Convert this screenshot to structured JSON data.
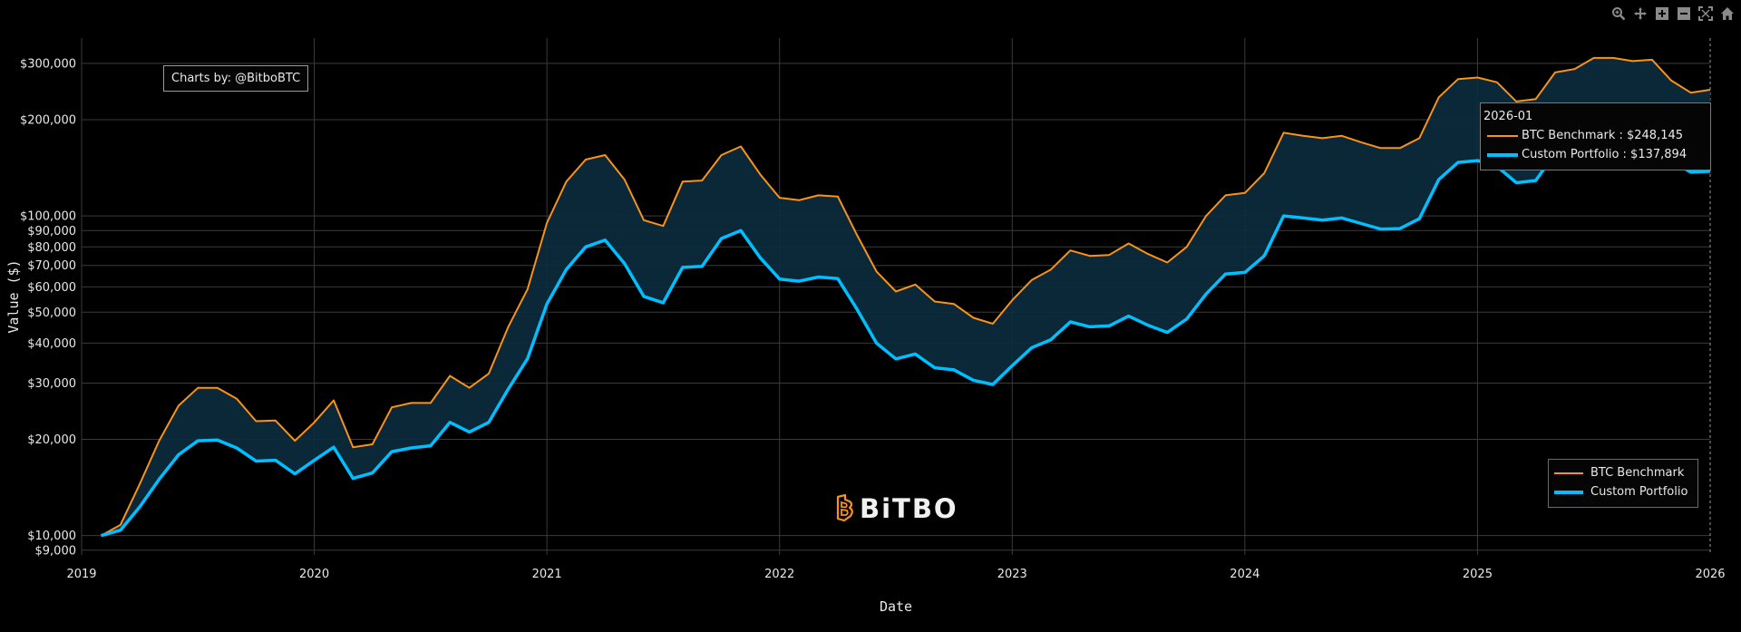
{
  "toolbar": {
    "icons": [
      "zoom-icon",
      "pan-icon",
      "zoom-in-icon",
      "zoom-out-icon",
      "autoscale-icon",
      "home-icon"
    ]
  },
  "credit": "Charts by: @BitboBTC",
  "logo": {
    "text": "BiTBO",
    "color": "#f7931a"
  },
  "tooltip": {
    "title": "2026-01",
    "rows": [
      {
        "label": "BTC Benchmark : $248,145",
        "color": "#f7931a"
      },
      {
        "label": "Custom Portfolio : $137,894",
        "color": "#00bfff"
      }
    ]
  },
  "legend": [
    {
      "label": "BTC Benchmark",
      "color": "#f7931a"
    },
    {
      "label": "Custom Portfolio",
      "color": "#00bfff"
    }
  ],
  "chart_data": {
    "type": "line",
    "title": "",
    "xlabel": "Date",
    "ylabel": "Value ($)",
    "yscale": "log",
    "ylim": [
      8700,
      360000
    ],
    "xlim": [
      "2019-01",
      "2026-01"
    ],
    "x_ticks": [
      "2019",
      "2020",
      "2021",
      "2022",
      "2023",
      "2024",
      "2025",
      "2026"
    ],
    "y_ticks": [
      {
        "value": 9000,
        "label": "$9,000"
      },
      {
        "value": 10000,
        "label": "$10,000"
      },
      {
        "value": 20000,
        "label": "$20,000"
      },
      {
        "value": 30000,
        "label": "$30,000"
      },
      {
        "value": 40000,
        "label": "$40,000"
      },
      {
        "value": 50000,
        "label": "$50,000"
      },
      {
        "value": 60000,
        "label": "$60,000"
      },
      {
        "value": 70000,
        "label": "$70,000"
      },
      {
        "value": 80000,
        "label": "$80,000"
      },
      {
        "value": 90000,
        "label": "$90,000"
      },
      {
        "value": 100000,
        "label": "$100,000"
      },
      {
        "value": 200000,
        "label": "$200,000"
      },
      {
        "value": 300000,
        "label": "$300,000"
      }
    ],
    "grid": true,
    "fill_between": true,
    "legend_position": "bottom-right",
    "x": [
      "2019-02",
      "2019-03",
      "2019-04",
      "2019-05",
      "2019-06",
      "2019-07",
      "2019-08",
      "2019-09",
      "2019-10",
      "2019-11",
      "2019-12",
      "2020-01",
      "2020-02",
      "2020-03",
      "2020-04",
      "2020-05",
      "2020-06",
      "2020-07",
      "2020-08",
      "2020-09",
      "2020-10",
      "2020-11",
      "2020-12",
      "2021-01",
      "2021-02",
      "2021-03",
      "2021-04",
      "2021-05",
      "2021-06",
      "2021-07",
      "2021-08",
      "2021-09",
      "2021-10",
      "2021-11",
      "2021-12",
      "2022-01",
      "2022-02",
      "2022-03",
      "2022-04",
      "2022-05",
      "2022-06",
      "2022-07",
      "2022-08",
      "2022-09",
      "2022-10",
      "2022-11",
      "2022-12",
      "2023-01",
      "2023-02",
      "2023-03",
      "2023-04",
      "2023-05",
      "2023-06",
      "2023-07",
      "2023-08",
      "2023-09",
      "2023-10",
      "2023-11",
      "2023-12",
      "2024-01",
      "2024-02",
      "2024-03",
      "2024-04",
      "2024-05",
      "2024-06",
      "2024-07",
      "2024-08",
      "2024-09",
      "2024-10",
      "2024-11",
      "2024-12",
      "2025-01",
      "2025-02",
      "2025-03",
      "2025-04",
      "2025-05",
      "2025-06",
      "2025-07",
      "2025-08",
      "2025-09",
      "2025-10",
      "2025-11",
      "2025-12",
      "2026-01"
    ],
    "series": [
      {
        "name": "BTC Benchmark",
        "color": "#f7931a",
        "values": [
          10000,
          10800,
          14500,
          19800,
          25500,
          29000,
          29000,
          26800,
          22800,
          22900,
          19800,
          22600,
          26500,
          18900,
          19300,
          25200,
          26000,
          26000,
          31600,
          29000,
          32100,
          44900,
          59000,
          95000,
          128000,
          150000,
          155000,
          130000,
          97000,
          93000,
          128000,
          129000,
          155000,
          165000,
          135000,
          114000,
          112000,
          116000,
          115000,
          87000,
          67000,
          58000,
          61000,
          54000,
          53000,
          48000,
          46000,
          54500,
          63000,
          68000,
          78000,
          75000,
          75500,
          82000,
          76000,
          71500,
          80000,
          100000,
          116000,
          118000,
          136000,
          182000,
          178000,
          175000,
          178000,
          170000,
          163000,
          163000,
          175000,
          235000,
          268000,
          271000,
          262000,
          228000,
          232000,
          281000,
          288000,
          312000,
          312000,
          305000,
          308000,
          265000,
          243000,
          248145
        ]
      },
      {
        "name": "Custom Portfolio",
        "color": "#00bfff",
        "values": [
          10000,
          10400,
          12300,
          15000,
          17900,
          19800,
          19900,
          18800,
          17100,
          17200,
          15600,
          17200,
          18900,
          15100,
          15700,
          18300,
          18800,
          19100,
          22600,
          21100,
          22600,
          28700,
          35800,
          53000,
          68000,
          80000,
          84000,
          71000,
          56000,
          53500,
          69000,
          69500,
          85000,
          90000,
          74000,
          63500,
          62500,
          64400,
          63700,
          51000,
          40000,
          35700,
          37000,
          33500,
          33000,
          30600,
          29700,
          34000,
          38700,
          41000,
          46600,
          45000,
          45300,
          48600,
          45500,
          43200,
          47600,
          57000,
          65800,
          66600,
          75000,
          100000,
          98500,
          97000,
          98500,
          94700,
          91000,
          91300,
          98000,
          130000,
          147000,
          149000,
          143000,
          127000,
          129000,
          157000,
          161000,
          174000,
          174000,
          170000,
          171000,
          149000,
          137000,
          137894
        ]
      }
    ]
  }
}
